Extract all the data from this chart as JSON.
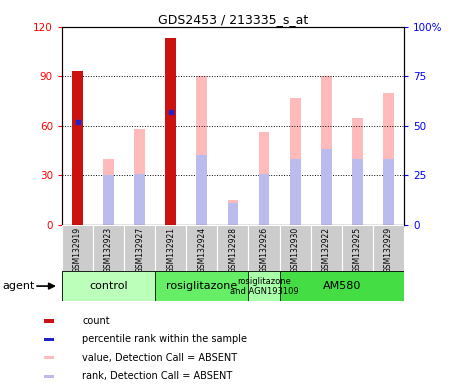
{
  "title": "GDS2453 / 213335_s_at",
  "samples": [
    "GSM132919",
    "GSM132923",
    "GSM132927",
    "GSM132921",
    "GSM132924",
    "GSM132928",
    "GSM132926",
    "GSM132930",
    "GSM132922",
    "GSM132925",
    "GSM132929"
  ],
  "count_values": [
    93,
    0,
    0,
    113,
    0,
    0,
    0,
    0,
    0,
    0,
    0
  ],
  "percentile_rank_values": [
    52,
    0,
    0,
    57,
    0,
    0,
    0,
    0,
    0,
    0,
    0
  ],
  "absent_value_heights": [
    0,
    40,
    58,
    0,
    90,
    15,
    56,
    77,
    90,
    65,
    80
  ],
  "absent_rank_heights": [
    0,
    30,
    31,
    0,
    42,
    13,
    31,
    40,
    46,
    40,
    40
  ],
  "groups": [
    {
      "label": "control",
      "start": 0,
      "end": 3,
      "color": "#bbffbb"
    },
    {
      "label": "rosiglitazone",
      "start": 3,
      "end": 6,
      "color": "#66ee66"
    },
    {
      "label": "rosiglitazone\nand AGN193109",
      "start": 6,
      "end": 7,
      "color": "#aaffaa"
    },
    {
      "label": "AM580",
      "start": 7,
      "end": 11,
      "color": "#44dd44"
    }
  ],
  "left_ylim": [
    0,
    120
  ],
  "right_ylim": [
    0,
    100
  ],
  "left_yticks": [
    0,
    30,
    60,
    90,
    120
  ],
  "right_yticks": [
    0,
    25,
    50,
    75,
    100
  ],
  "bar_width": 0.35,
  "count_color": "#cc1111",
  "percentile_color": "#2222cc",
  "absent_value_color": "#ffbbbb",
  "absent_rank_color": "#bbbbee",
  "tick_bg_color": "#cccccc",
  "legend_items": [
    {
      "label": "count",
      "color": "#cc1111"
    },
    {
      "label": "percentile rank within the sample",
      "color": "#2222cc"
    },
    {
      "label": "value, Detection Call = ABSENT",
      "color": "#ffbbbb"
    },
    {
      "label": "rank, Detection Call = ABSENT",
      "color": "#bbbbee"
    }
  ]
}
